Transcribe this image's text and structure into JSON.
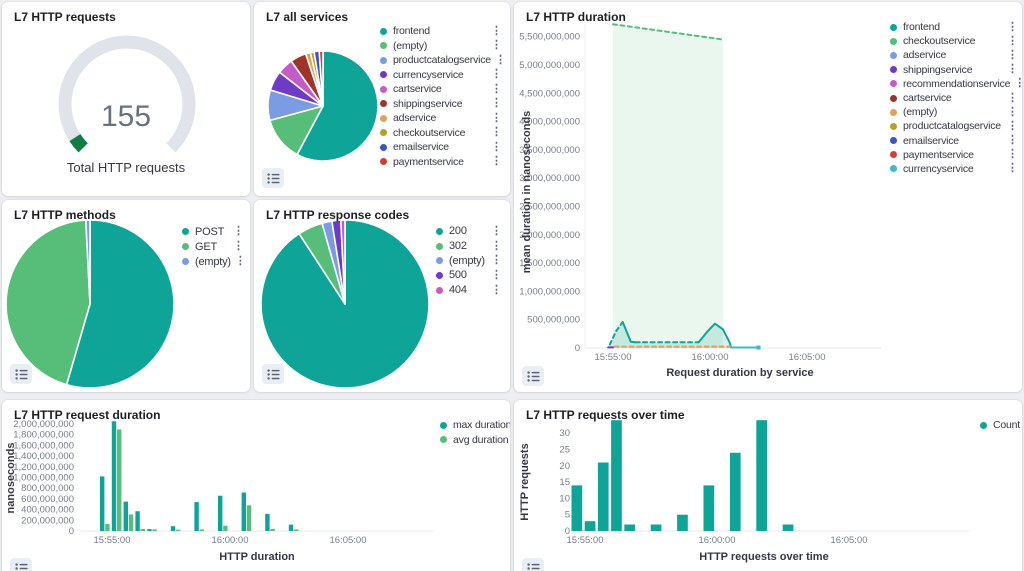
{
  "palette": {
    "teal": "#0EA498",
    "green": "#56BE78",
    "periwinkle": "#7B9CE3",
    "purple": "#6D3BC6",
    "magenta": "#C45BC7",
    "darkred": "#9E352B",
    "orange": "#E2A159",
    "olive": "#B5A21E",
    "blue": "#3C53C6",
    "red": "#CC4036",
    "cyan": "#3FB8C8",
    "gauge_green": "#0F7D45",
    "gauge_track": "#E0E3E9",
    "page_background": "#ECEEF2"
  },
  "ui": {
    "kebab_icon": "⋮",
    "legend_toggle_icon": "list-icon"
  },
  "chart_data": [
    {
      "type": "gauge",
      "title": "L7 HTTP requests",
      "value": "155",
      "label": "Total HTTP requests",
      "fraction": 0.045,
      "color": "#0F7D45",
      "track_color": "#E0E3E9"
    },
    {
      "type": "pie",
      "title": "L7 all services",
      "legend_kebab": true,
      "slices": [
        {
          "label": "frontend",
          "value": 57.8,
          "color": "#0EA498"
        },
        {
          "label": "(empty)",
          "value": 13.0,
          "color": "#56BE78"
        },
        {
          "label": "productcatalogservice",
          "value": 8.9,
          "color": "#7B9CE3"
        },
        {
          "label": "currencyservice",
          "value": 5.8,
          "color": "#6D3BC6"
        },
        {
          "label": "cartservice",
          "value": 4.7,
          "color": "#C45BC7"
        },
        {
          "label": "shippingservice",
          "value": 4.7,
          "color": "#9E352B"
        },
        {
          "label": "adservice",
          "value": 1.4,
          "color": "#E2A159"
        },
        {
          "label": "checkoutservice",
          "value": 1.1,
          "color": "#B5A21E"
        },
        {
          "label": "emailservice",
          "value": 1.5,
          "color": "#3C53C6"
        },
        {
          "label": "paymentservice",
          "value": 1.1,
          "color": "#CC4036"
        }
      ],
      "units": "percent (approx)"
    },
    {
      "type": "area",
      "title": "L7 HTTP duration",
      "ylabel": "mean duration in nanoseconds",
      "xlabel": "Request duration by service",
      "ylim": [
        0,
        5800000000
      ],
      "yticks": [
        "0",
        "500,000,000",
        "1,000,000,000",
        "1,500,000,000",
        "2,000,000,000",
        "2,500,000,000",
        "3,000,000,000",
        "3,500,000,000",
        "4,000,000,000",
        "4,500,000,000",
        "5,000,000,000",
        "5,500,000,000"
      ],
      "xticks": [
        "15:55:00",
        "16:00:00",
        "16:05:00"
      ],
      "legend_kebab": true,
      "legend": [
        {
          "label": "frontend",
          "color": "#0EA498"
        },
        {
          "label": "checkoutservice",
          "color": "#56BE78"
        },
        {
          "label": "adservice",
          "color": "#7B9CE3"
        },
        {
          "label": "shippingservice",
          "color": "#6D3BC6"
        },
        {
          "label": "recommendationservice",
          "color": "#C45BC7"
        },
        {
          "label": "cartservice",
          "color": "#9E352B"
        },
        {
          "label": "(empty)",
          "color": "#E2A159"
        },
        {
          "label": "productcatalogservice",
          "color": "#B5A21E"
        },
        {
          "label": "emailservice",
          "color": "#3C53C6"
        },
        {
          "label": "paymentservice",
          "color": "#CC4036"
        },
        {
          "label": "currencyservice",
          "color": "#3FB8C8"
        }
      ],
      "series": [
        {
          "name": "checkoutservice",
          "color": "#56BE78",
          "style": "dashed",
          "fill": "rgba(86,190,120,0.13)",
          "points": [
            [
              "15:55:00",
              5720000000
            ],
            [
              "16:00:40",
              5450000000
            ]
          ]
        },
        {
          "name": "frontend",
          "color": "#0EA498",
          "fill": "rgba(14,164,152,0.16)",
          "segments": [
            {
              "style": "dashed",
              "points": [
                [
                  "15:54:50",
                  60000000
                ],
                [
                  "15:55:10",
                  300000000
                ],
                [
                  "15:55:30",
                  460000000
                ]
              ]
            },
            {
              "style": "solid",
              "points": [
                [
                  "15:55:30",
                  460000000
                ],
                [
                  "15:55:55",
                  110000000
                ],
                [
                  "15:56:10",
                  100000000
                ]
              ]
            },
            {
              "style": "dashed",
              "points": [
                [
                  "15:56:10",
                  100000000
                ],
                [
                  "15:59:25",
                  100000000
                ]
              ]
            },
            {
              "style": "solid",
              "points": [
                [
                  "15:59:25",
                  100000000
                ],
                [
                  "15:59:50",
                  280000000
                ],
                [
                  "16:00:15",
                  430000000
                ],
                [
                  "16:00:40",
                  330000000
                ],
                [
                  "16:01:00",
                  110000000
                ],
                [
                  "16:01:05",
                  20000000
                ]
              ]
            }
          ]
        },
        {
          "name": "(empty)",
          "color": "#E2A159",
          "style": "dashed",
          "points": [
            [
              "15:55:05",
              25000000
            ],
            [
              "16:01:05",
              25000000
            ]
          ]
        },
        {
          "name": "shippingservice",
          "color": "#6D3BC6",
          "style": "solid",
          "points": [
            [
              "15:54:45",
              10000000
            ],
            [
              "15:55:00",
              10000000
            ]
          ]
        },
        {
          "name": "currencyservice",
          "color": "#3FB8C8",
          "style": "solid",
          "end_marker": true,
          "points": [
            [
              "16:01:05",
              8000000
            ],
            [
              "16:02:30",
              8000000
            ]
          ]
        }
      ]
    },
    {
      "type": "pie",
      "title": "L7 HTTP methods",
      "legend_kebab": true,
      "slices": [
        {
          "label": "POST",
          "value": 54.5,
          "color": "#0EA498"
        },
        {
          "label": "GET",
          "value": 44.7,
          "color": "#56BE78"
        },
        {
          "label": "(empty)",
          "value": 0.8,
          "color": "#7B9CE3"
        }
      ],
      "units": "percent (approx)"
    },
    {
      "type": "pie",
      "title": "L7 HTTP response codes",
      "legend_kebab": true,
      "slices": [
        {
          "label": "200",
          "value": 90.8,
          "color": "#0EA498"
        },
        {
          "label": "302",
          "value": 4.8,
          "color": "#56BE78"
        },
        {
          "label": "(empty)",
          "value": 1.9,
          "color": "#7B9CE3"
        },
        {
          "label": "500",
          "value": 1.7,
          "color": "#6D3BC6"
        },
        {
          "label": "404",
          "value": 0.8,
          "color": "#C45BC7"
        }
      ],
      "units": "percent (approx)"
    },
    {
      "type": "bar",
      "title": "L7 HTTP request duration",
      "ylabel": "nanoseconds",
      "xlabel": "HTTP duration",
      "ylim": [
        0,
        2000000000
      ],
      "yticks": [
        "0",
        "200,000,000",
        "400,000,000",
        "600,000,000",
        "800,000,000",
        "1,000,000,000",
        "1,200,000,000",
        "1,400,000,000",
        "1,600,000,000",
        "1,800,000,000",
        "2,000,000,000"
      ],
      "xticks": [
        "15:55:00",
        "16:00:00",
        "16:05:00"
      ],
      "legend_kebab": false,
      "categories": [
        "15:54:30",
        "15:55:00",
        "15:55:30",
        "15:56:00",
        "15:56:30",
        "15:57:00",
        "15:57:30",
        "15:58:00",
        "15:58:30",
        "15:59:00",
        "15:59:30",
        "16:00:00",
        "16:00:30",
        "16:01:00",
        "16:01:30",
        "16:02:00",
        "16:02:30"
      ],
      "series": [
        {
          "name": "max duration",
          "color": "#0EA498",
          "values": [
            1020000000,
            2050000000,
            550000000,
            370000000,
            35000000,
            0,
            90000000,
            0,
            540000000,
            0,
            660000000,
            0,
            720000000,
            0,
            320000000,
            0,
            120000000
          ]
        },
        {
          "name": "avg duration",
          "color": "#56BE78",
          "values": [
            130000000,
            1900000000,
            310000000,
            40000000,
            30000000,
            0,
            25000000,
            0,
            30000000,
            0,
            100000000,
            0,
            480000000,
            0,
            40000000,
            0,
            30000000
          ]
        }
      ]
    },
    {
      "type": "bar",
      "title": "L7 HTTP requests over time",
      "ylabel": "HTTP requests",
      "xlabel": "HTTP requests over time",
      "ylim": [
        0,
        30
      ],
      "yticks": [
        "0",
        "5",
        "10",
        "15",
        "20",
        "25",
        "30"
      ],
      "xticks": [
        "15:55:00",
        "16:00:00",
        "16:05:00"
      ],
      "legend_kebab": false,
      "categories": [
        "15:54:30",
        "15:55:00",
        "15:55:30",
        "15:56:00",
        "15:56:30",
        "15:57:00",
        "15:57:30",
        "15:58:00",
        "15:58:30",
        "15:59:00",
        "15:59:30",
        "16:00:00",
        "16:00:30",
        "16:01:00",
        "16:01:30",
        "16:02:00",
        "16:02:30"
      ],
      "series": [
        {
          "name": "Count",
          "color": "#0EA498",
          "values": [
            14,
            3,
            21,
            34,
            2,
            0,
            2,
            0,
            5,
            0,
            14,
            0,
            24,
            0,
            34,
            0,
            2
          ]
        }
      ]
    }
  ]
}
